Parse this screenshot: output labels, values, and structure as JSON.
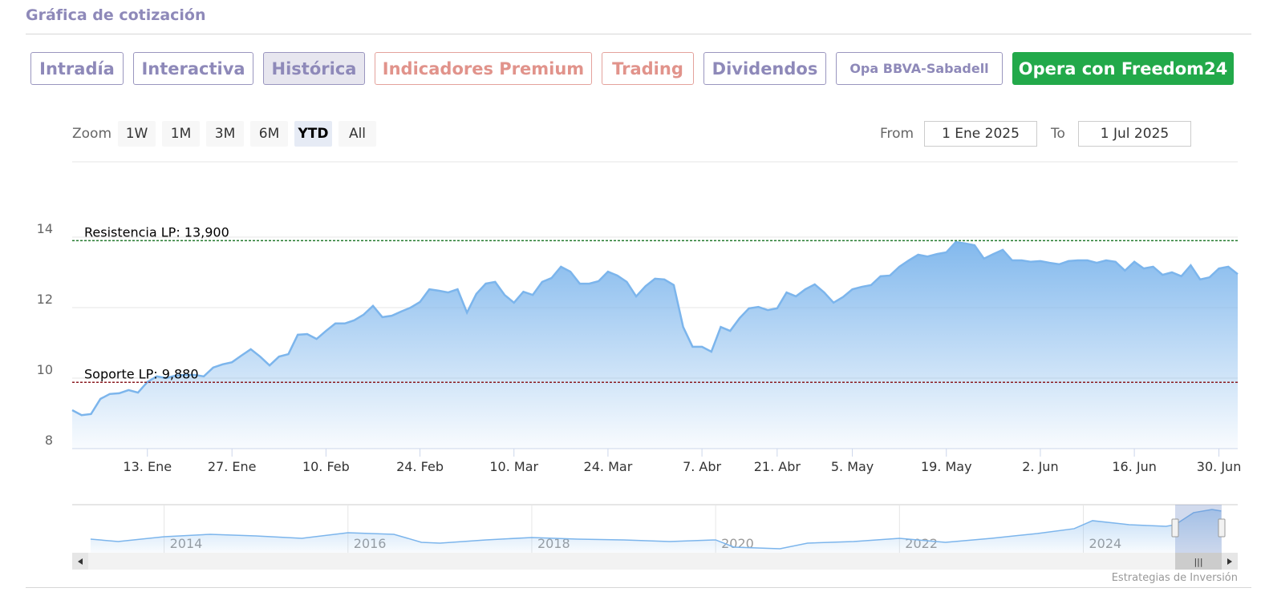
{
  "header": {
    "title": "Gráfica de cotización"
  },
  "tabs": [
    "Intradía",
    "Interactiva",
    "Histórica",
    "Indicadores Premium",
    "Trading",
    "Dividendos",
    "Opa BBVA-Sabadell",
    "Opera con Freedom24"
  ],
  "range_selector": {
    "zoom_label": "Zoom",
    "buttons": [
      "1W",
      "1M",
      "3M",
      "6M",
      "YTD",
      "All"
    ],
    "selected": "YTD",
    "from_label": "From",
    "from": "1 Ene 2025",
    "to_label": "To",
    "to": "1 Jul 2025"
  },
  "chart_data": {
    "type": "area",
    "color": "#7cb5ec",
    "categories": [
      null,
      null,
      null,
      null,
      null,
      null,
      null,
      null,
      "13. Ene",
      null,
      null,
      null,
      null,
      null,
      null,
      null,
      null,
      "27. Ene",
      null,
      null,
      null,
      null,
      null,
      null,
      null,
      null,
      null,
      "10. Feb",
      null,
      null,
      null,
      null,
      null,
      null,
      null,
      null,
      null,
      "24. Feb",
      null,
      null,
      null,
      null,
      null,
      null,
      null,
      null,
      null,
      "10. Mar",
      null,
      null,
      null,
      null,
      null,
      null,
      null,
      null,
      null,
      "24. Mar",
      null,
      null,
      null,
      null,
      null,
      null,
      null,
      null,
      null,
      "7. Abr",
      null,
      null,
      null,
      null,
      null,
      null,
      null,
      "21. Abr",
      null,
      null,
      null,
      null,
      null,
      null,
      null,
      "5. May",
      null,
      null,
      null,
      null,
      null,
      null,
      null,
      null,
      null,
      "19. May",
      null,
      null,
      null,
      null,
      null,
      null,
      null,
      null,
      null,
      "2. Jun",
      null,
      null,
      null,
      null,
      null,
      null,
      null,
      null,
      null,
      "16. Jun",
      null,
      null,
      null,
      null,
      null,
      null,
      null,
      null,
      "30. Jun",
      null,
      null
    ],
    "values": [
      9.09,
      8.95,
      8.98,
      9.41,
      9.55,
      9.57,
      9.66,
      9.59,
      9.89,
      10.05,
      10.0,
      10.07,
      10.09,
      10.09,
      10.05,
      10.3,
      10.39,
      10.45,
      10.64,
      10.82,
      10.61,
      10.36,
      10.61,
      10.68,
      11.23,
      11.25,
      11.11,
      11.34,
      11.55,
      11.55,
      11.64,
      11.8,
      12.05,
      11.73,
      11.77,
      11.89,
      12.0,
      12.16,
      12.52,
      12.48,
      12.43,
      12.52,
      11.86,
      12.39,
      12.68,
      12.73,
      12.36,
      12.14,
      12.45,
      12.36,
      12.73,
      12.84,
      13.16,
      13.02,
      12.68,
      12.68,
      12.75,
      13.02,
      12.91,
      12.73,
      12.32,
      12.61,
      12.82,
      12.8,
      12.64,
      11.45,
      10.89,
      10.89,
      10.75,
      11.45,
      11.34,
      11.7,
      11.98,
      12.02,
      11.93,
      11.98,
      12.43,
      12.32,
      12.52,
      12.66,
      12.43,
      12.14,
      12.3,
      12.52,
      12.59,
      12.64,
      12.89,
      12.91,
      13.16,
      13.34,
      13.5,
      13.45,
      13.52,
      13.57,
      13.86,
      13.82,
      13.77,
      13.39,
      13.52,
      13.64,
      13.34,
      13.34,
      13.3,
      13.32,
      13.27,
      13.23,
      13.32,
      13.34,
      13.34,
      13.27,
      13.34,
      13.3,
      13.05,
      13.3,
      13.11,
      13.16,
      12.93,
      13.0,
      12.89,
      13.2,
      12.8,
      12.86,
      13.11,
      13.16,
      12.95
    ],
    "ylim": [
      8,
      14.5
    ],
    "yticks": [
      8,
      10,
      12,
      14
    ],
    "grid": true,
    "annotations": [
      {
        "label": "Resistencia LP: 13,900",
        "value": 13.9,
        "color": "#237a2e"
      },
      {
        "label": "Soporte LP: 9,880",
        "value": 9.88,
        "color": "#8b1c22"
      }
    ],
    "navigator": {
      "x": [
        2013.2,
        2013.5,
        2014,
        2014.5,
        2015,
        2015.5,
        2016,
        2016.5,
        2016.8,
        2017,
        2017.5,
        2018,
        2018.5,
        2019,
        2019.5,
        2020,
        2020.2,
        2020.7,
        2021,
        2021.5,
        2022,
        2022.5,
        2023,
        2023.5,
        2023.9,
        2024.1,
        2024.5,
        2024.9,
        2025.0,
        2025.2,
        2025.4,
        2025.5
      ],
      "values": [
        4.75,
        4.04,
        5.47,
        6.18,
        5.7,
        4.99,
        6.66,
        6.18,
        3.8,
        3.56,
        4.51,
        5.23,
        4.75,
        4.51,
        4.04,
        4.51,
        2.37,
        1.9,
        3.56,
        4.04,
        4.99,
        3.8,
        4.99,
        6.42,
        7.85,
        10.23,
        9.04,
        8.56,
        9.04,
        12.61,
        13.56,
        13.09
      ],
      "xlim": [
        2013,
        2025.68
      ],
      "ylim": [
        0.7,
        14.5
      ],
      "xticks": [
        2014,
        2016,
        2018,
        2020,
        2022,
        2024
      ]
    }
  },
  "credits": "Estrategias de Inversión"
}
